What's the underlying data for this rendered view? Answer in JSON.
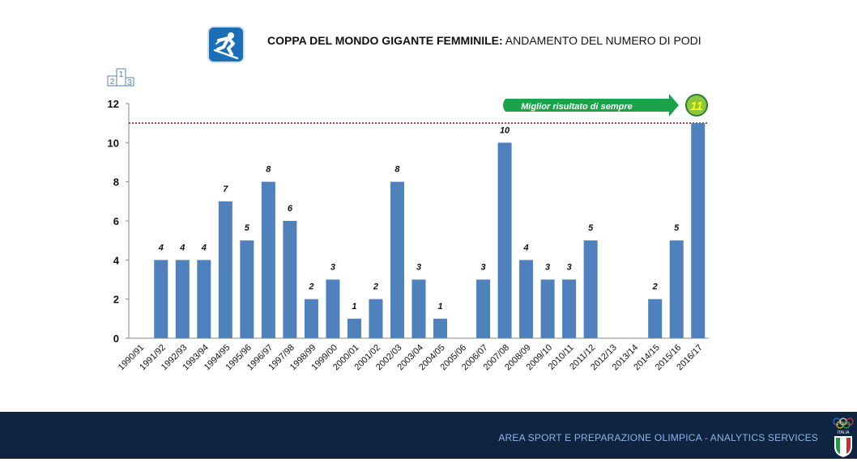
{
  "header": {
    "title_bold": "COPPA DEL MONDO GIGANTE FEMMINILE:",
    "title_rest": " ANDAMENTO DEL NUMERO DI PODI",
    "sport_icon": "alpine-skiing-icon",
    "podium_icon": "podium-icon",
    "podium_digits": [
      "2",
      "1",
      "3"
    ]
  },
  "chart_data": {
    "type": "bar",
    "title": "",
    "xlabel": "",
    "ylabel": "",
    "ylim": [
      0,
      12
    ],
    "yticks": [
      0,
      2,
      4,
      6,
      8,
      10,
      12
    ],
    "grid": false,
    "bar_color": "#4f81bd",
    "categories": [
      "1990/91",
      "1991/92",
      "1992/93",
      "1993/94",
      "1994/95",
      "1995/96",
      "1996/97",
      "1997/98",
      "1998/99",
      "1999/00",
      "2000/01",
      "2001/02",
      "2002/03",
      "2003/04",
      "2004/05",
      "2005/06",
      "2006/07",
      "2007/08",
      "2008/09",
      "2009/10",
      "2010/11",
      "2011/12",
      "2012/13",
      "2013/14",
      "2014/15",
      "2015/16",
      "2016/17"
    ],
    "values": [
      0,
      4,
      4,
      4,
      7,
      5,
      8,
      6,
      2,
      3,
      1,
      2,
      8,
      3,
      1,
      0,
      3,
      10,
      4,
      3,
      3,
      5,
      0,
      0,
      2,
      5,
      11
    ],
    "best_line": {
      "value": 11,
      "color": "#c00000"
    },
    "annotation": {
      "label": "Miglior risultato di sempre",
      "value": "11",
      "arrow_color": "#1aa34a",
      "badge_color": "#8dc63f",
      "badge_text_color": "#ffff00"
    }
  },
  "footer": {
    "text": "AREA SPORT E PREPARAZIONE OLIMPICA - ANALYTICS SERVICES",
    "logo": "italia-olympic-logo",
    "logo_text": "ITALIA"
  }
}
